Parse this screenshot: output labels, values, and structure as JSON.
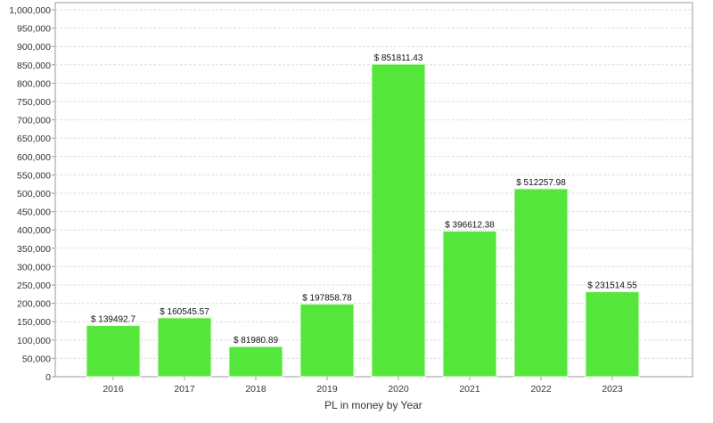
{
  "chart_data": {
    "type": "bar",
    "title": "",
    "xlabel": "PL in money by Year",
    "ylabel": "",
    "categories": [
      "2016",
      "2017",
      "2018",
      "2019",
      "2020",
      "2021",
      "2022",
      "2023"
    ],
    "values": [
      139492.7,
      160545.57,
      81980.89,
      197858.78,
      851811.43,
      396612.38,
      512257.98,
      231514.55
    ],
    "data_labels": [
      "$ 139492.7",
      "$ 160545.57",
      "$ 81980.89",
      "$ 197858.78",
      "$ 851811.43",
      "$ 396612.38",
      "$ 512257.98",
      "$ 231514.55"
    ],
    "ylim": [
      0,
      1000000
    ],
    "yticks": [
      0,
      50000,
      100000,
      150000,
      200000,
      250000,
      300000,
      350000,
      400000,
      450000,
      500000,
      550000,
      600000,
      650000,
      700000,
      750000,
      800000,
      850000,
      900000,
      950000,
      1000000
    ],
    "ytick_labels": [
      "0",
      "50,000",
      "100,000",
      "150,000",
      "200,000",
      "250,000",
      "300,000",
      "350,000",
      "400,000",
      "450,000",
      "500,000",
      "550,000",
      "600,000",
      "650,000",
      "700,000",
      "750,000",
      "800,000",
      "850,000",
      "900,000",
      "950,000",
      "1,000,000"
    ],
    "grid": true,
    "bar_color": "#55e63c"
  }
}
